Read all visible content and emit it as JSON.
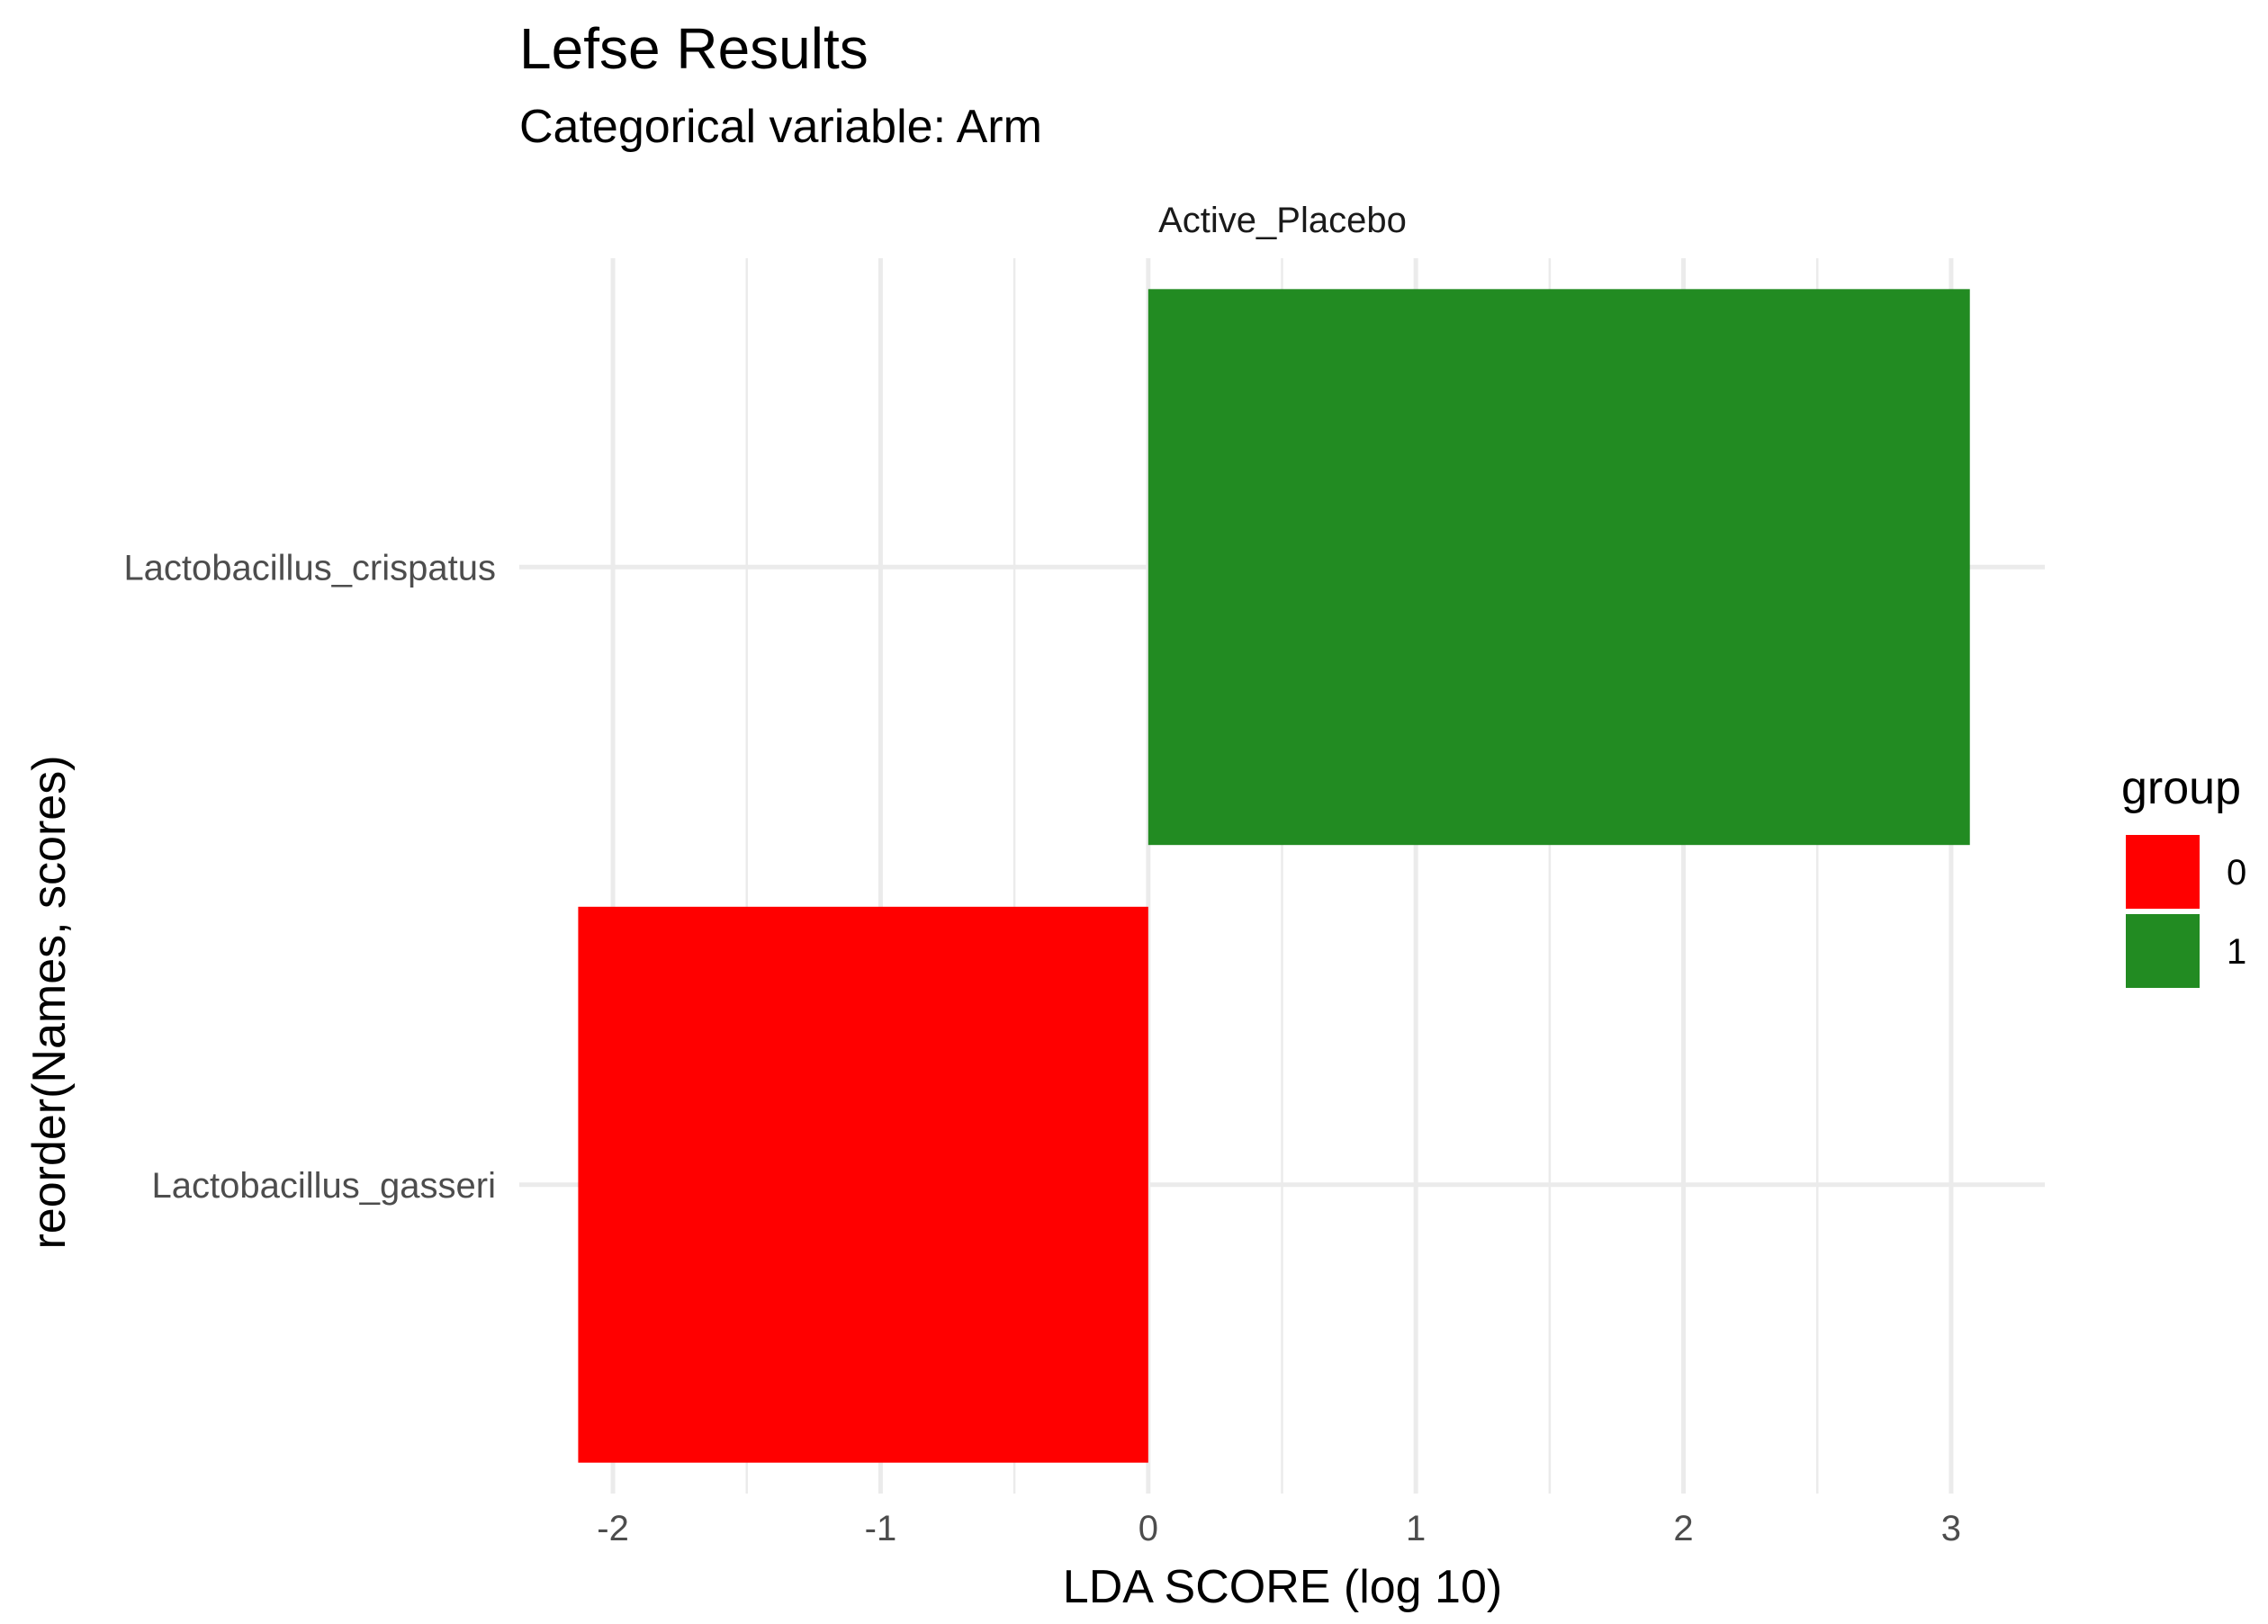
{
  "chart_data": {
    "type": "bar",
    "orientation": "horizontal",
    "title": "Lefse Results",
    "subtitle": "Categorical variable: Arm",
    "facet_label": "Active_Placebo",
    "xlabel": "LDA SCORE (log 10)",
    "ylabel": "reorder(Names, scores)",
    "xlim": [
      -2.35,
      3.35
    ],
    "x_ticks": [
      -2,
      -1,
      0,
      1,
      2,
      3
    ],
    "x_tick_labels": [
      "-2",
      "-1",
      "0",
      "1",
      "2",
      "3"
    ],
    "grid": true,
    "categories": [
      "Lactobacillus_crispatus",
      "Lactobacillus_gasseri"
    ],
    "values": [
      3.07,
      -2.13
    ],
    "groups": [
      "1",
      "0"
    ],
    "legend": {
      "title": "group",
      "position": "right",
      "entries": [
        {
          "label": "0",
          "color": "#FF0000"
        },
        {
          "label": "1",
          "color": "#228B22"
        }
      ]
    }
  }
}
